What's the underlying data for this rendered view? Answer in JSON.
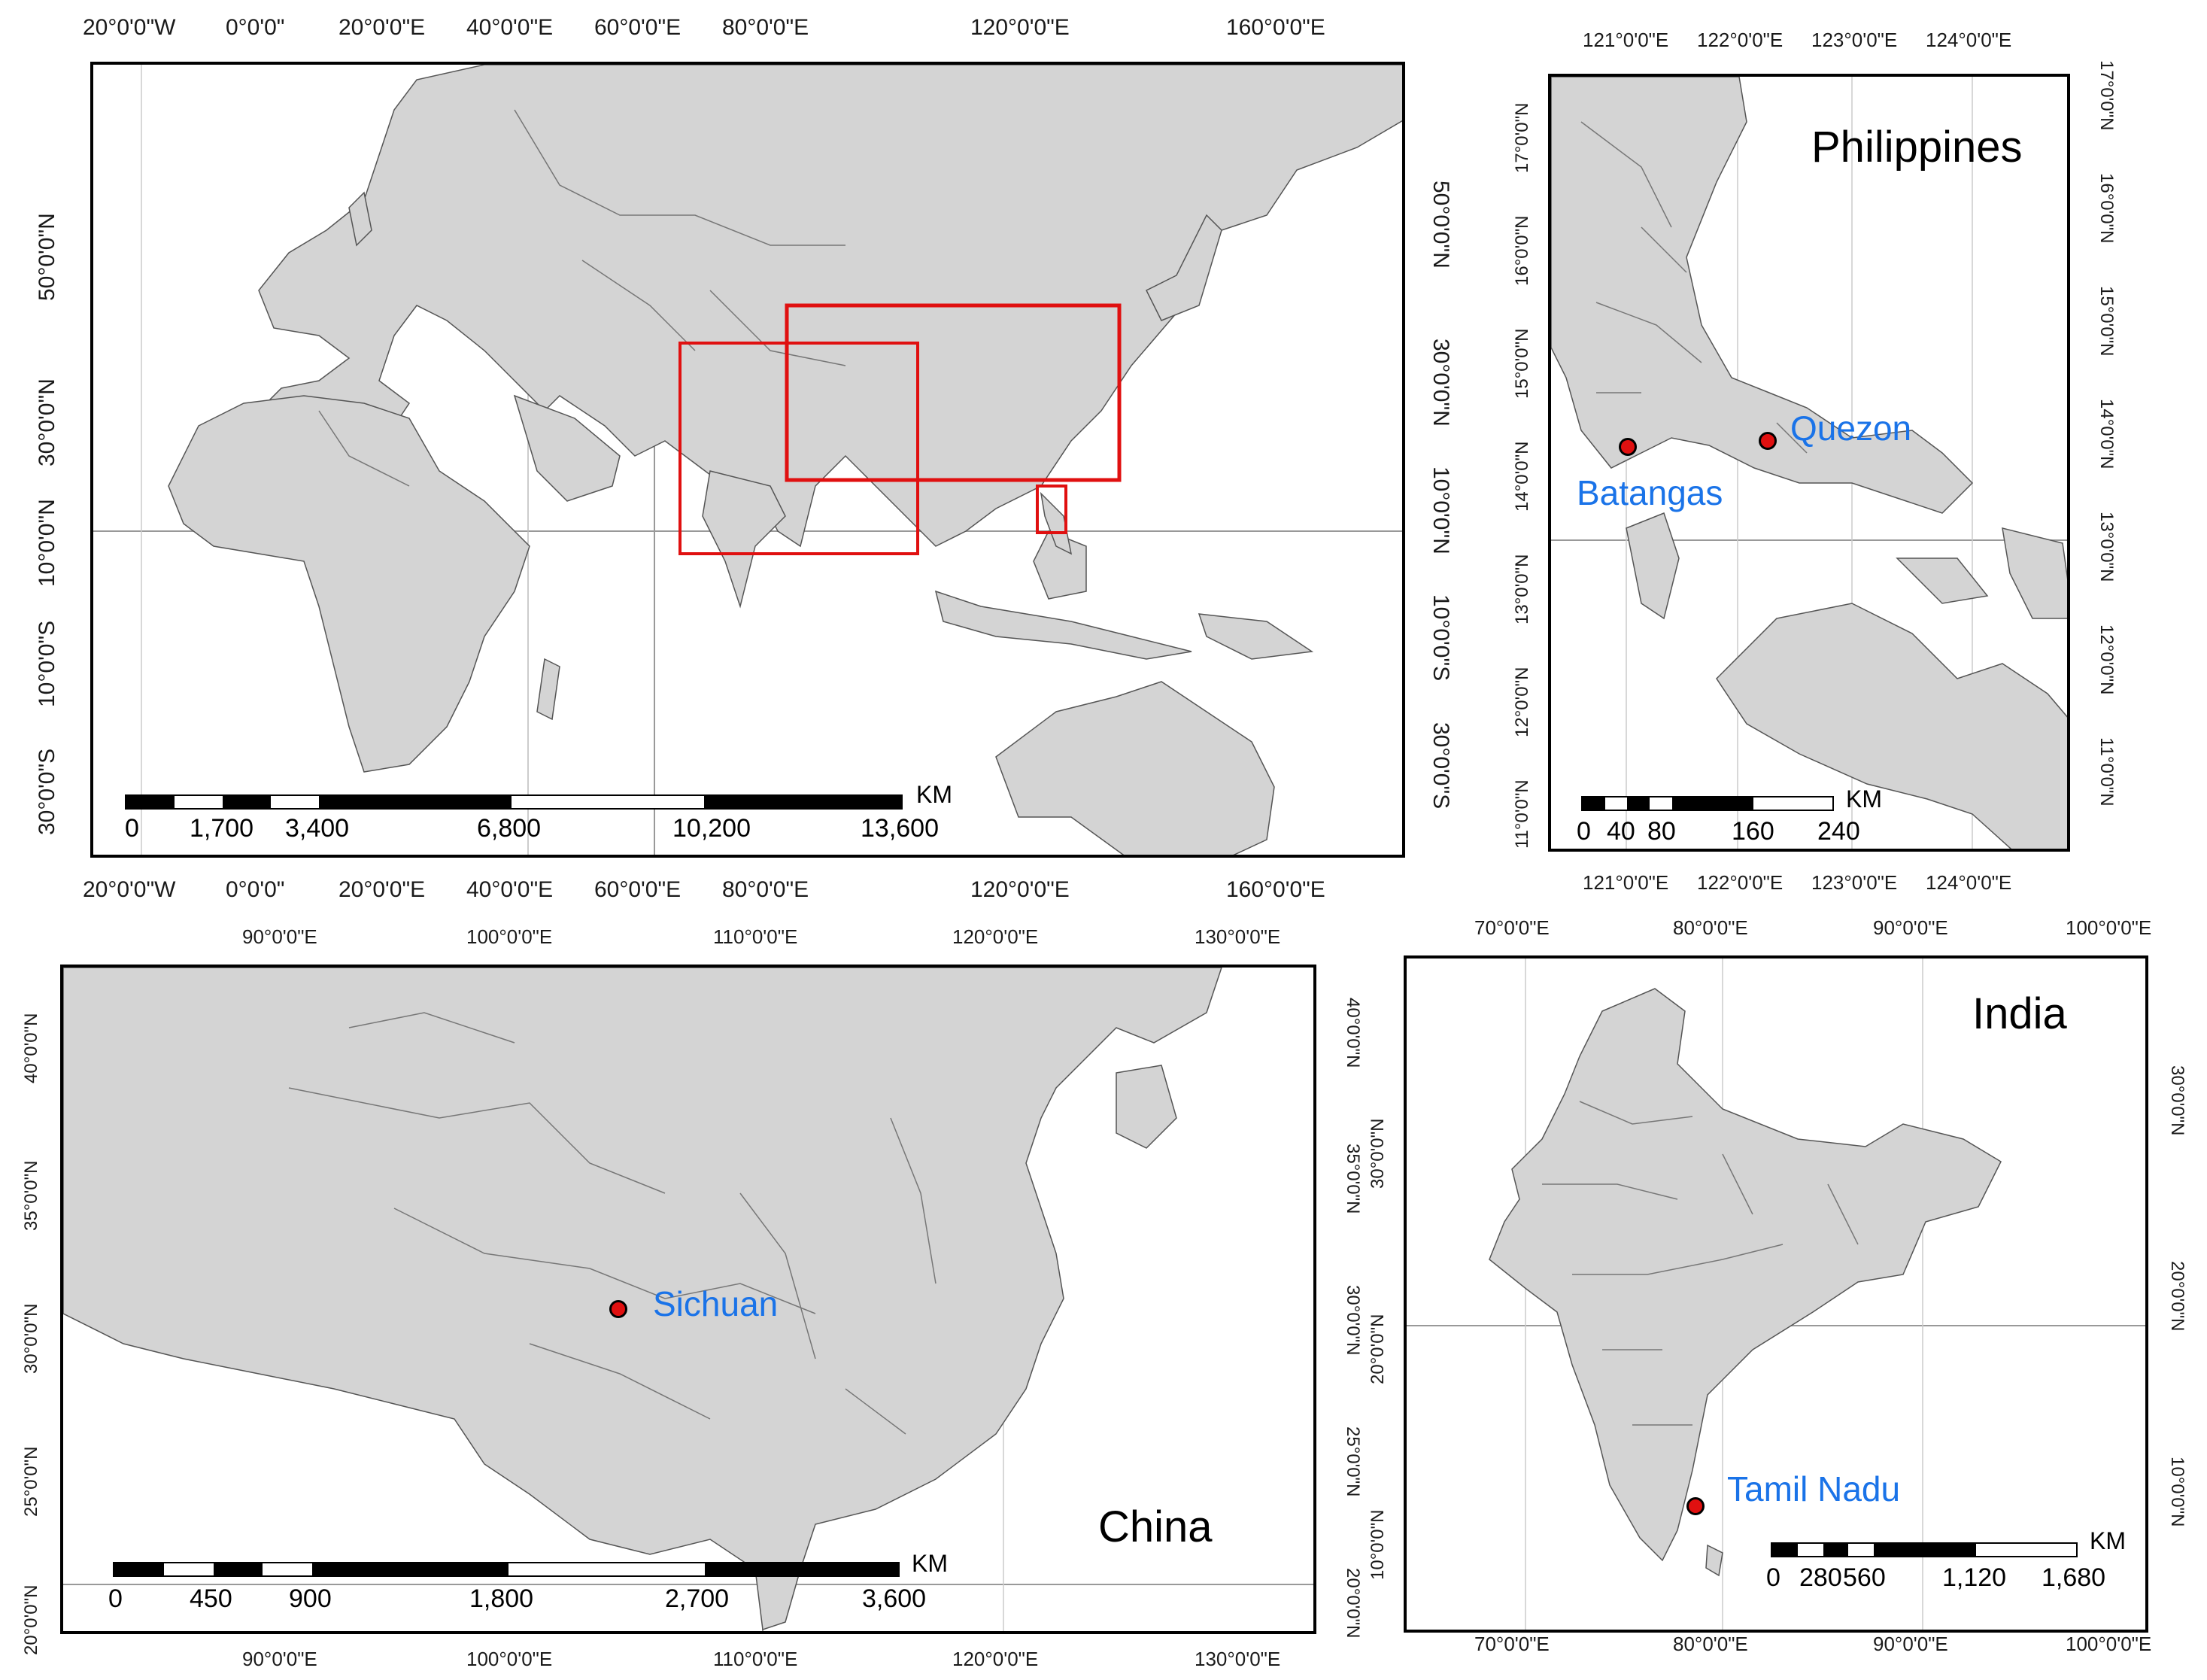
{
  "world": {
    "lon_top": [
      "20°0'0\"W",
      "0°0'0\"",
      "20°0'0\"E",
      "40°0'0\"E",
      "60°0'0\"E",
      "80°0'0\"E",
      "120°0'0\"E",
      "160°0'0\"E"
    ],
    "lon_bottom": [
      "20°0'0\"W",
      "0°0'0\"",
      "20°0'0\"E",
      "40°0'0\"E",
      "60°0'0\"E",
      "80°0'0\"E",
      "120°0'0\"E",
      "160°0'0\"E"
    ],
    "lat_left": [
      "50°0'0\"N",
      "30°0'0\"N",
      "10°0'0\"N",
      "10°0'0\"S",
      "30°0'0\"S"
    ],
    "lat_right": [
      "50°0'0\"N",
      "30°0'0\"N",
      "10°0'0\"N",
      "10°0'0\"S",
      "30°0'0\"S"
    ],
    "scale": {
      "labels": [
        "0",
        "1,700",
        "3,400",
        "6,800",
        "10,200",
        "13,600"
      ],
      "unit": "KM"
    }
  },
  "philippines": {
    "title": "Philippines",
    "lon_top": [
      "121°0'0\"E",
      "122°0'0\"E",
      "123°0'0\"E",
      "124°0'0\"E"
    ],
    "lon_bottom": [
      "121°0'0\"E",
      "122°0'0\"E",
      "123°0'0\"E",
      "124°0'0\"E"
    ],
    "lat_left": [
      "17°0'0\"N",
      "16°0'0\"N",
      "15°0'0\"N",
      "14°0'0\"N",
      "13°0'0\"N",
      "12°0'0\"N",
      "11°0'0\"N"
    ],
    "lat_right": [
      "17°0'0\"N",
      "16°0'0\"N",
      "15°0'0\"N",
      "14°0'0\"N",
      "13°0'0\"N",
      "12°0'0\"N",
      "11°0'0\"N"
    ],
    "places": {
      "quezon": "Quezon",
      "batangas": "Batangas"
    },
    "scale": {
      "labels": [
        "0",
        "40",
        "80",
        "160",
        "240"
      ],
      "unit": "KM"
    }
  },
  "china": {
    "title": "China",
    "lon_top": [
      "90°0'0\"E",
      "100°0'0\"E",
      "110°0'0\"E",
      "120°0'0\"E",
      "130°0'0\"E"
    ],
    "lon_bottom": [
      "90°0'0\"E",
      "100°0'0\"E",
      "110°0'0\"E",
      "120°0'0\"E",
      "130°0'0\"E"
    ],
    "lat_left": [
      "40°0'0\"N",
      "35°0'0\"N",
      "30°0'0\"N",
      "25°0'0\"N",
      "20°0'0\"N"
    ],
    "lat_right": [
      "40°0'0\"N",
      "35°0'0\"N",
      "30°0'0\"N",
      "25°0'0\"N",
      "20°0'0\"N"
    ],
    "places": {
      "sichuan": "Sichuan"
    },
    "scale": {
      "labels": [
        "0",
        "450",
        "900",
        "1,800",
        "2,700",
        "3,600"
      ],
      "unit": "KM"
    }
  },
  "india": {
    "title": "India",
    "lon_top": [
      "70°0'0\"E",
      "80°0'0\"E",
      "90°0'0\"E",
      "100°0'0\"E"
    ],
    "lon_bottom": [
      "70°0'0\"E",
      "80°0'0\"E",
      "90°0'0\"E",
      "100°0'0\"E"
    ],
    "lat_left": [
      "30°0'0\"N",
      "20°0'0\"N",
      "10°0'0\"N"
    ],
    "lat_right": [
      "30°0'0\"N",
      "20°0'0\"N",
      "10°0'0\"N"
    ],
    "places": {
      "tamil_nadu": "Tamil Nadu"
    },
    "scale": {
      "labels": [
        "0",
        "280",
        "560",
        "1,120",
        "1,680"
      ],
      "unit": "KM"
    }
  },
  "colors": {
    "land": "#d4d4d4",
    "border": "#555555",
    "highlight": "#e01010",
    "place_label": "#1a73e8",
    "graticule": "#999999"
  }
}
